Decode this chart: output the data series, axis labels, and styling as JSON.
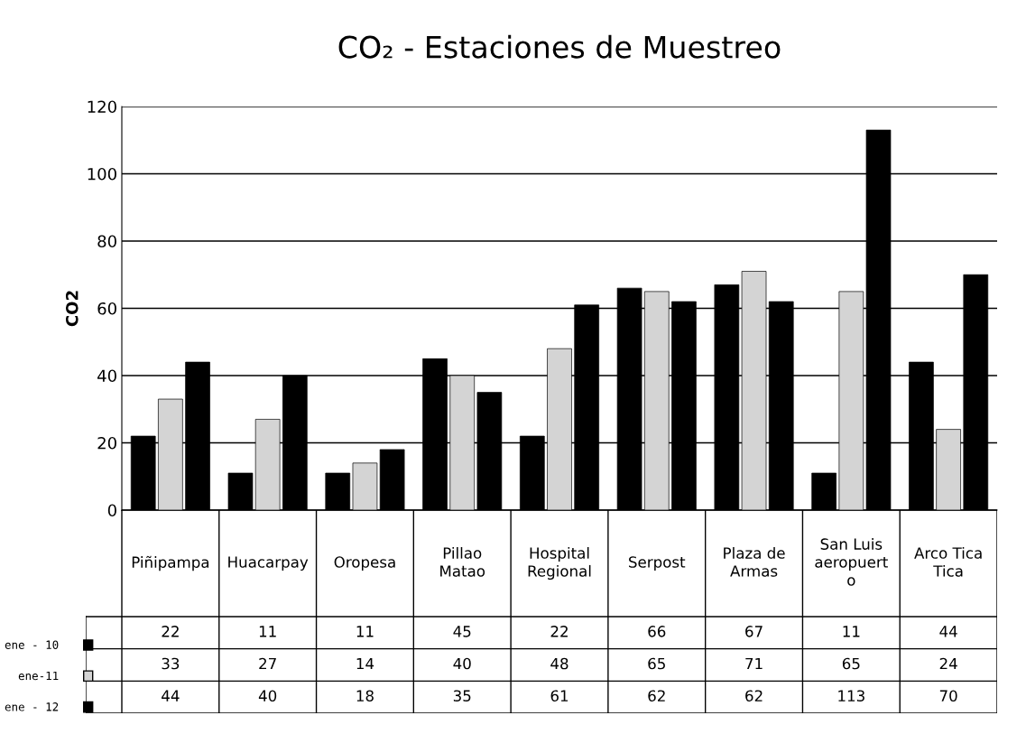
{
  "chart_data": {
    "type": "bar",
    "title": "CO₂ - Estaciones de Muestreo",
    "ylabel": "CO2",
    "categories": [
      "Piñipampa",
      "Huacarpay",
      "Oropesa",
      "Pillao\nMatao",
      "Hospital\nRegional",
      "Serpost",
      "Plaza de\nArmas",
      "San Luis\naeropuert\no",
      "Arco Tica\nTica"
    ],
    "series": [
      {
        "name": "ene - 10",
        "color": "#000000",
        "values": [
          22,
          11,
          11,
          45,
          22,
          66,
          67,
          11,
          44
        ]
      },
      {
        "name": "ene-11",
        "color": "#d4d4d4",
        "values": [
          33,
          27,
          14,
          40,
          48,
          65,
          71,
          65,
          24
        ]
      },
      {
        "name": "ene - 12",
        "color": "#000000",
        "values": [
          44,
          40,
          18,
          35,
          61,
          62,
          62,
          113,
          70
        ]
      }
    ],
    "ylim": [
      0,
      120
    ],
    "yticks": [
      0,
      20,
      40,
      60,
      80,
      100,
      120
    ],
    "grid": "y",
    "data_labels": true,
    "legend": "bottom left"
  }
}
